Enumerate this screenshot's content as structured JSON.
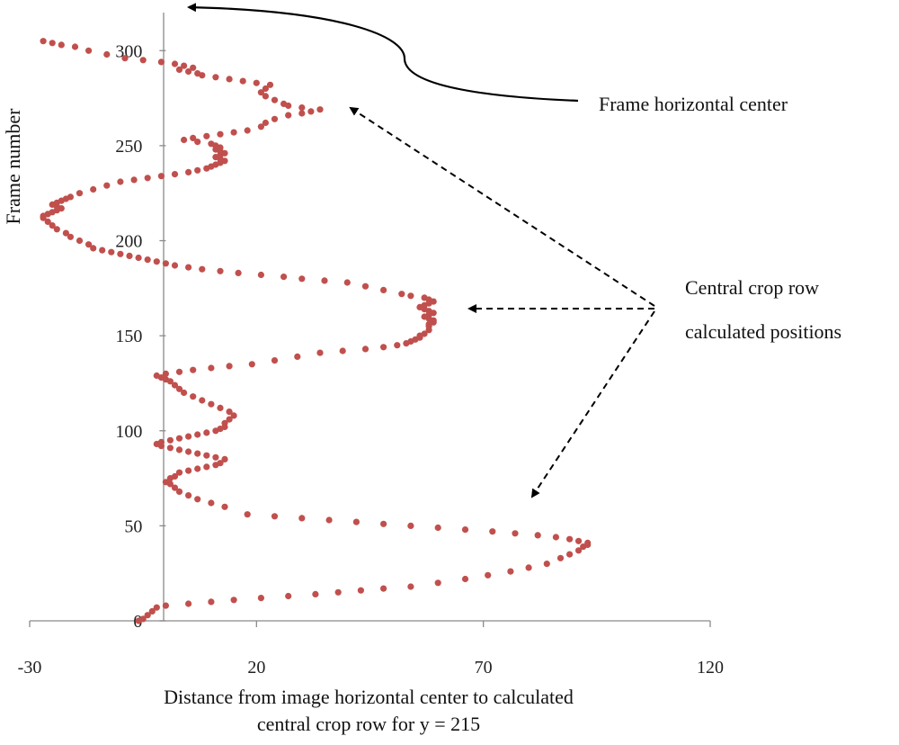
{
  "chart_data": {
    "type": "scatter",
    "title": "",
    "xlabel_lines": [
      "Distance from  image horizontal center to calculated",
      "central crop row for y = 215"
    ],
    "ylabel": "Frame  number",
    "xlim": [
      -30,
      120
    ],
    "ylim": [
      0,
      320
    ],
    "x_ticks": [
      -30,
      20,
      70,
      120
    ],
    "y_ticks": [
      0,
      50,
      100,
      150,
      200,
      250,
      300
    ],
    "grid": false,
    "legend": "none",
    "marker_color": "#c0504d",
    "series": [
      {
        "points": [
          [
            -6,
            0
          ],
          [
            -5,
            1
          ],
          [
            -4,
            3
          ],
          [
            -3,
            5
          ],
          [
            -2,
            7
          ],
          [
            0,
            8
          ],
          [
            5,
            9
          ],
          [
            10,
            10
          ],
          [
            15,
            11
          ],
          [
            21,
            12
          ],
          [
            27,
            13
          ],
          [
            33,
            14
          ],
          [
            38,
            15
          ],
          [
            43,
            16
          ],
          [
            48,
            17
          ],
          [
            54,
            18
          ],
          [
            60,
            20
          ],
          [
            66,
            22
          ],
          [
            71,
            24
          ],
          [
            76,
            26
          ],
          [
            80,
            28
          ],
          [
            84,
            30
          ],
          [
            87,
            33
          ],
          [
            89,
            35
          ],
          [
            91,
            37
          ],
          [
            92,
            39
          ],
          [
            93,
            40
          ],
          [
            93,
            41
          ],
          [
            91,
            42
          ],
          [
            89,
            43
          ],
          [
            86,
            44
          ],
          [
            82,
            45
          ],
          [
            77,
            46
          ],
          [
            72,
            47
          ],
          [
            66,
            48
          ],
          [
            60,
            49
          ],
          [
            54,
            50
          ],
          [
            48,
            51
          ],
          [
            42,
            52
          ],
          [
            36,
            53
          ],
          [
            30,
            54
          ],
          [
            24,
            55
          ],
          [
            18,
            56
          ],
          [
            13,
            60
          ],
          [
            10,
            62
          ],
          [
            7,
            64
          ],
          [
            5,
            66
          ],
          [
            3,
            68
          ],
          [
            2,
            70
          ],
          [
            1,
            72
          ],
          [
            0,
            73
          ],
          [
            1,
            75
          ],
          [
            2,
            76
          ],
          [
            3,
            78
          ],
          [
            5,
            79
          ],
          [
            7,
            80
          ],
          [
            9,
            81
          ],
          [
            11,
            82
          ],
          [
            12,
            83
          ],
          [
            13,
            85
          ],
          [
            11,
            86
          ],
          [
            9,
            87
          ],
          [
            7,
            88
          ],
          [
            5,
            89
          ],
          [
            3,
            90
          ],
          [
            1,
            91
          ],
          [
            -1,
            92
          ],
          [
            -2,
            93
          ],
          [
            -1,
            94
          ],
          [
            1,
            95
          ],
          [
            3,
            96
          ],
          [
            5,
            97
          ],
          [
            7,
            98
          ],
          [
            9,
            99
          ],
          [
            11,
            100
          ],
          [
            12,
            101
          ],
          [
            13,
            102
          ],
          [
            13,
            104
          ],
          [
            14,
            106
          ],
          [
            15,
            108
          ],
          [
            14,
            110
          ],
          [
            12,
            112
          ],
          [
            10,
            114
          ],
          [
            8,
            116
          ],
          [
            6,
            118
          ],
          [
            4,
            120
          ],
          [
            3,
            122
          ],
          [
            2,
            124
          ],
          [
            1,
            126
          ],
          [
            0,
            127
          ],
          [
            -1,
            128
          ],
          [
            -2,
            129
          ],
          [
            0,
            130
          ],
          [
            3,
            131
          ],
          [
            6,
            132
          ],
          [
            10,
            133
          ],
          [
            14,
            134
          ],
          [
            19,
            135
          ],
          [
            24,
            137
          ],
          [
            29,
            139
          ],
          [
            34,
            141
          ],
          [
            39,
            142
          ],
          [
            44,
            143
          ],
          [
            48,
            144
          ],
          [
            51,
            145
          ],
          [
            53,
            146
          ],
          [
            54,
            147
          ],
          [
            55,
            148
          ],
          [
            56,
            149
          ],
          [
            56,
            150
          ],
          [
            57,
            151
          ],
          [
            58,
            153
          ],
          [
            58,
            155
          ],
          [
            58,
            156
          ],
          [
            59,
            157
          ],
          [
            59,
            158
          ],
          [
            58,
            159
          ],
          [
            57,
            160
          ],
          [
            58,
            161
          ],
          [
            59,
            162
          ],
          [
            58,
            163
          ],
          [
            57,
            164
          ],
          [
            56,
            165
          ],
          [
            57,
            166
          ],
          [
            58,
            167
          ],
          [
            59,
            168
          ],
          [
            58,
            169
          ],
          [
            57,
            170
          ],
          [
            54,
            171
          ],
          [
            52,
            172
          ],
          [
            48,
            174
          ],
          [
            44,
            176
          ],
          [
            40,
            178
          ],
          [
            35,
            179
          ],
          [
            30,
            180
          ],
          [
            26,
            181
          ],
          [
            21,
            182
          ],
          [
            16,
            183
          ],
          [
            12,
            184
          ],
          [
            8,
            185
          ],
          [
            5,
            186
          ],
          [
            2,
            187
          ],
          [
            0,
            188
          ],
          [
            -2,
            189
          ],
          [
            -4,
            190
          ],
          [
            -6,
            191
          ],
          [
            -8,
            192
          ],
          [
            -10,
            193
          ],
          [
            -12,
            194
          ],
          [
            -14,
            195
          ],
          [
            -16,
            196
          ],
          [
            -17,
            198
          ],
          [
            -19,
            200
          ],
          [
            -21,
            202
          ],
          [
            -22,
            204
          ],
          [
            -24,
            206
          ],
          [
            -25,
            208
          ],
          [
            -26,
            210
          ],
          [
            -27,
            212
          ],
          [
            -27,
            213
          ],
          [
            -26,
            214
          ],
          [
            -25,
            215
          ],
          [
            -24,
            216
          ],
          [
            -23,
            217
          ],
          [
            -24,
            218
          ],
          [
            -25,
            219
          ],
          [
            -24,
            220
          ],
          [
            -23,
            221
          ],
          [
            -22,
            222
          ],
          [
            -21,
            223
          ],
          [
            -19,
            225
          ],
          [
            -16,
            227
          ],
          [
            -13,
            229
          ],
          [
            -10,
            231
          ],
          [
            -7,
            232
          ],
          [
            -4,
            233
          ],
          [
            -1,
            234
          ],
          [
            2,
            235
          ],
          [
            5,
            236
          ],
          [
            7,
            237
          ],
          [
            9,
            238
          ],
          [
            10,
            239
          ],
          [
            11,
            240
          ],
          [
            12,
            241
          ],
          [
            13,
            242
          ],
          [
            12,
            243
          ],
          [
            11,
            244
          ],
          [
            12,
            245
          ],
          [
            13,
            246
          ],
          [
            12,
            247
          ],
          [
            11,
            248
          ],
          [
            12,
            249
          ],
          [
            11,
            250
          ],
          [
            10,
            251
          ],
          [
            7,
            252
          ],
          [
            4,
            253
          ],
          [
            6,
            254
          ],
          [
            9,
            255
          ],
          [
            12,
            256
          ],
          [
            15,
            257
          ],
          [
            18,
            258
          ],
          [
            21,
            260
          ],
          [
            22,
            262
          ],
          [
            24,
            264
          ],
          [
            27,
            266
          ],
          [
            30,
            267
          ],
          [
            32,
            268
          ],
          [
            34,
            269
          ],
          [
            30,
            270
          ],
          [
            27,
            271
          ],
          [
            26,
            272
          ],
          [
            24,
            274
          ],
          [
            22,
            276
          ],
          [
            21,
            278
          ],
          [
            22,
            280
          ],
          [
            23,
            282
          ],
          [
            20,
            283
          ],
          [
            17,
            284
          ],
          [
            14,
            285
          ],
          [
            11,
            286
          ],
          [
            8,
            287
          ],
          [
            7,
            288
          ],
          [
            5,
            289
          ],
          [
            3,
            290
          ],
          [
            6,
            291
          ],
          [
            4,
            292
          ],
          [
            2,
            293
          ],
          [
            -1,
            294
          ],
          [
            -5,
            295
          ],
          [
            -9,
            296
          ],
          [
            -13,
            298
          ],
          [
            -17,
            300
          ],
          [
            -20,
            302
          ],
          [
            -23,
            303
          ],
          [
            -25,
            304
          ],
          [
            -27,
            305
          ]
        ]
      }
    ],
    "annotations": [
      {
        "text_lines": [
          "Frame horizontal center"
        ],
        "points_to": "x = 0 (top of vertical axis)",
        "style": "solid-arrow"
      },
      {
        "text_lines": [
          "Central crop row",
          "calculated positions"
        ],
        "points_to": "three arrows to the point cloud",
        "style": "dashed-arrows"
      }
    ]
  }
}
